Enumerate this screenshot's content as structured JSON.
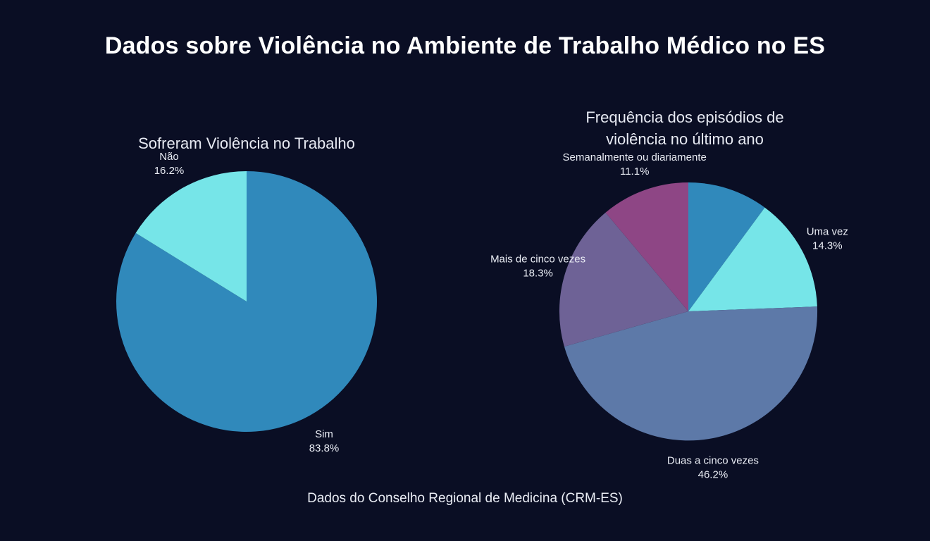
{
  "title": "Dados sobre Violência no Ambiente de Trabalho Médico no ES",
  "footer": "Dados do Conselho Regional de Medicina (CRM-ES)",
  "theme": {
    "background": "#0a0e24",
    "title_color": "#ffffff",
    "label_color": "#e9ecf4"
  },
  "chart_data": [
    {
      "type": "pie",
      "title": "Sofreram Violência no Trabalho",
      "labels": [
        "Sim",
        "Não"
      ],
      "values": [
        83.8,
        16.2
      ],
      "colors": [
        "#3089bb",
        "#76e5e8"
      ],
      "start_angle_deg": 0,
      "direction": "clockwise",
      "labels_position": "outside",
      "label_format": "name + percent"
    },
    {
      "type": "pie",
      "title": "Frequência dos episódios de violência no último ano",
      "labels": [
        "",
        "Uma vez",
        "Duas a cinco vezes",
        "Mais de cinco vezes",
        "Semanalmente ou diariamente"
      ],
      "values": [
        10.1,
        14.3,
        46.2,
        18.3,
        11.1
      ],
      "colors": [
        "#3089bb",
        "#76e5e8",
        "#5d79a8",
        "#6e6296",
        "#8e4685"
      ],
      "start_angle_deg": 0,
      "direction": "clockwise",
      "labels_position": "outside",
      "label_format": "name + percent"
    }
  ]
}
